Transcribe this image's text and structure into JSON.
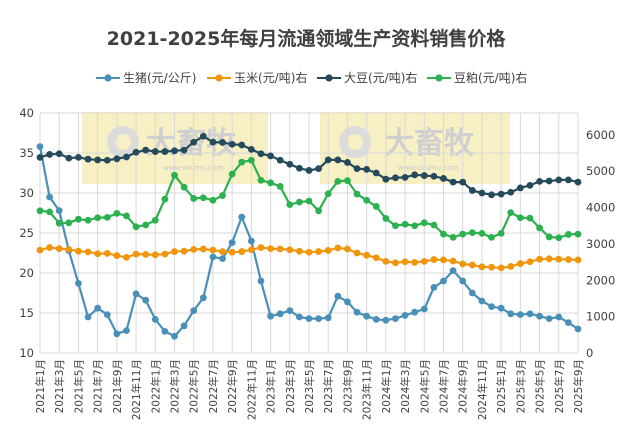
{
  "chart_data": {
    "type": "line",
    "title": "2021-2025年每月流通领域生产资料销售价格",
    "watermark": {
      "brand": "大畜牧",
      "url": "www.dxumu.com"
    },
    "y_left": {
      "ticks": [
        10,
        15,
        20,
        25,
        30,
        35,
        40
      ],
      "ylim": [
        10,
        40
      ]
    },
    "y_right": {
      "ticks": [
        0,
        1000,
        2000,
        3000,
        4000,
        5000,
        6000
      ],
      "ylim": [
        0,
        6600
      ]
    },
    "grid": true,
    "legend": "top",
    "x": [
      "2021年1月",
      "2021年2月",
      "2021年3月",
      "2021年4月",
      "2021年5月",
      "2021年6月",
      "2021年7月",
      "2021年8月",
      "2021年9月",
      "2021年10月",
      "2021年11月",
      "2021年12月",
      "2022年1月",
      "2022年2月",
      "2022年3月",
      "2022年4月",
      "2022年5月",
      "2022年6月",
      "2022年7月",
      "2022年8月",
      "2022年9月",
      "2022年10月",
      "2022年11月",
      "2022年12月",
      "2023年1月",
      "2023年2月",
      "2023年3月",
      "2023年4月",
      "2023年5月",
      "2023年6月",
      "2023年7月",
      "2023年8月",
      "2023年9月",
      "2023年10月",
      "2023年11月",
      "2023年12月",
      "2024年1月",
      "2024年2月",
      "2024年3月",
      "2024年4月",
      "2024年5月",
      "2024年6月",
      "2024年7月",
      "2024年8月",
      "2024年9月",
      "2024年10月",
      "2024年11月",
      "2024年12月",
      "2025年1月",
      "2025年2月",
      "2025年3月",
      "2025年4月",
      "2025年5月",
      "2025年6月",
      "2025年7月",
      "2025年8月",
      "2025年9月"
    ],
    "x_tick_labels": [
      "2021年1月",
      "2021年3月",
      "2021年5月",
      "2021年7月",
      "2021年9月",
      "2021年11月",
      "2022年1月",
      "2022年3月",
      "2022年5月",
      "2022年7月",
      "2022年9月",
      "2022年11月",
      "2023年1月",
      "2023年3月",
      "2023年5月",
      "2023年7月",
      "2023年9月",
      "2023年11月",
      "2024年1月",
      "2024年3月",
      "2024年5月",
      "2024年7月",
      "2024年9月",
      "2024年11月",
      "2025年1月",
      "2025年3月",
      "2025年5月",
      "2025年7月",
      "2025年9月"
    ],
    "series": [
      {
        "name": "生猪(元/公斤)",
        "axis": "left",
        "color": "#4a8fb8",
        "values": [
          35.8,
          29.5,
          27.8,
          22.8,
          18.7,
          14.5,
          15.6,
          14.8,
          12.4,
          12.8,
          17.4,
          16.6,
          14.2,
          12.7,
          12.1,
          13.4,
          15.3,
          16.9,
          22.0,
          21.8,
          23.8,
          27.0,
          24.0,
          19.0,
          14.6,
          14.9,
          15.3,
          14.5,
          14.3,
          14.3,
          14.4,
          17.1,
          16.4,
          15.1,
          14.6,
          14.2,
          14.1,
          14.3,
          14.7,
          15.1,
          15.5,
          18.2,
          19.0,
          20.3,
          19.0,
          17.5,
          16.5,
          15.8,
          15.6,
          14.9,
          14.8,
          14.9,
          14.6,
          14.3,
          14.5,
          13.8,
          13.0
        ]
      },
      {
        "name": "玉米(元/吨)右",
        "axis": "right",
        "color": "#f0960e",
        "values": [
          2830,
          2900,
          2870,
          2850,
          2800,
          2780,
          2730,
          2740,
          2680,
          2630,
          2720,
          2710,
          2700,
          2720,
          2790,
          2800,
          2850,
          2860,
          2830,
          2790,
          2770,
          2790,
          2840,
          2900,
          2870,
          2860,
          2840,
          2800,
          2770,
          2790,
          2820,
          2890,
          2860,
          2750,
          2690,
          2620,
          2520,
          2480,
          2510,
          2490,
          2520,
          2570,
          2560,
          2530,
          2450,
          2420,
          2370,
          2360,
          2340,
          2380,
          2460,
          2510,
          2580,
          2590,
          2580,
          2570,
          2560
        ]
      },
      {
        "name": "大豆(元/吨)右",
        "axis": "right",
        "color": "#244a5c",
        "values": [
          5380,
          5460,
          5480,
          5360,
          5380,
          5330,
          5310,
          5300,
          5340,
          5390,
          5520,
          5580,
          5540,
          5540,
          5560,
          5580,
          5800,
          5960,
          5800,
          5790,
          5740,
          5720,
          5600,
          5480,
          5420,
          5300,
          5190,
          5080,
          5020,
          5070,
          5310,
          5310,
          5240,
          5070,
          5050,
          4950,
          4780,
          4820,
          4830,
          4900,
          4880,
          4860,
          4800,
          4700,
          4700,
          4470,
          4400,
          4350,
          4370,
          4420,
          4540,
          4610,
          4720,
          4730,
          4760,
          4760,
          4700
        ]
      },
      {
        "name": "豆粕(元/吨)右",
        "axis": "right",
        "color": "#2db04f",
        "values": [
          3910,
          3880,
          3570,
          3580,
          3680,
          3650,
          3720,
          3730,
          3840,
          3770,
          3470,
          3520,
          3650,
          4230,
          4890,
          4560,
          4250,
          4270,
          4200,
          4330,
          4920,
          5250,
          5300,
          4750,
          4680,
          4580,
          4080,
          4150,
          4180,
          3910,
          4380,
          4720,
          4740,
          4370,
          4200,
          4030,
          3700,
          3500,
          3540,
          3500,
          3580,
          3520,
          3270,
          3180,
          3270,
          3310,
          3290,
          3180,
          3290,
          3860,
          3720,
          3710,
          3440,
          3190,
          3170,
          3260,
          3270
        ]
      }
    ]
  }
}
